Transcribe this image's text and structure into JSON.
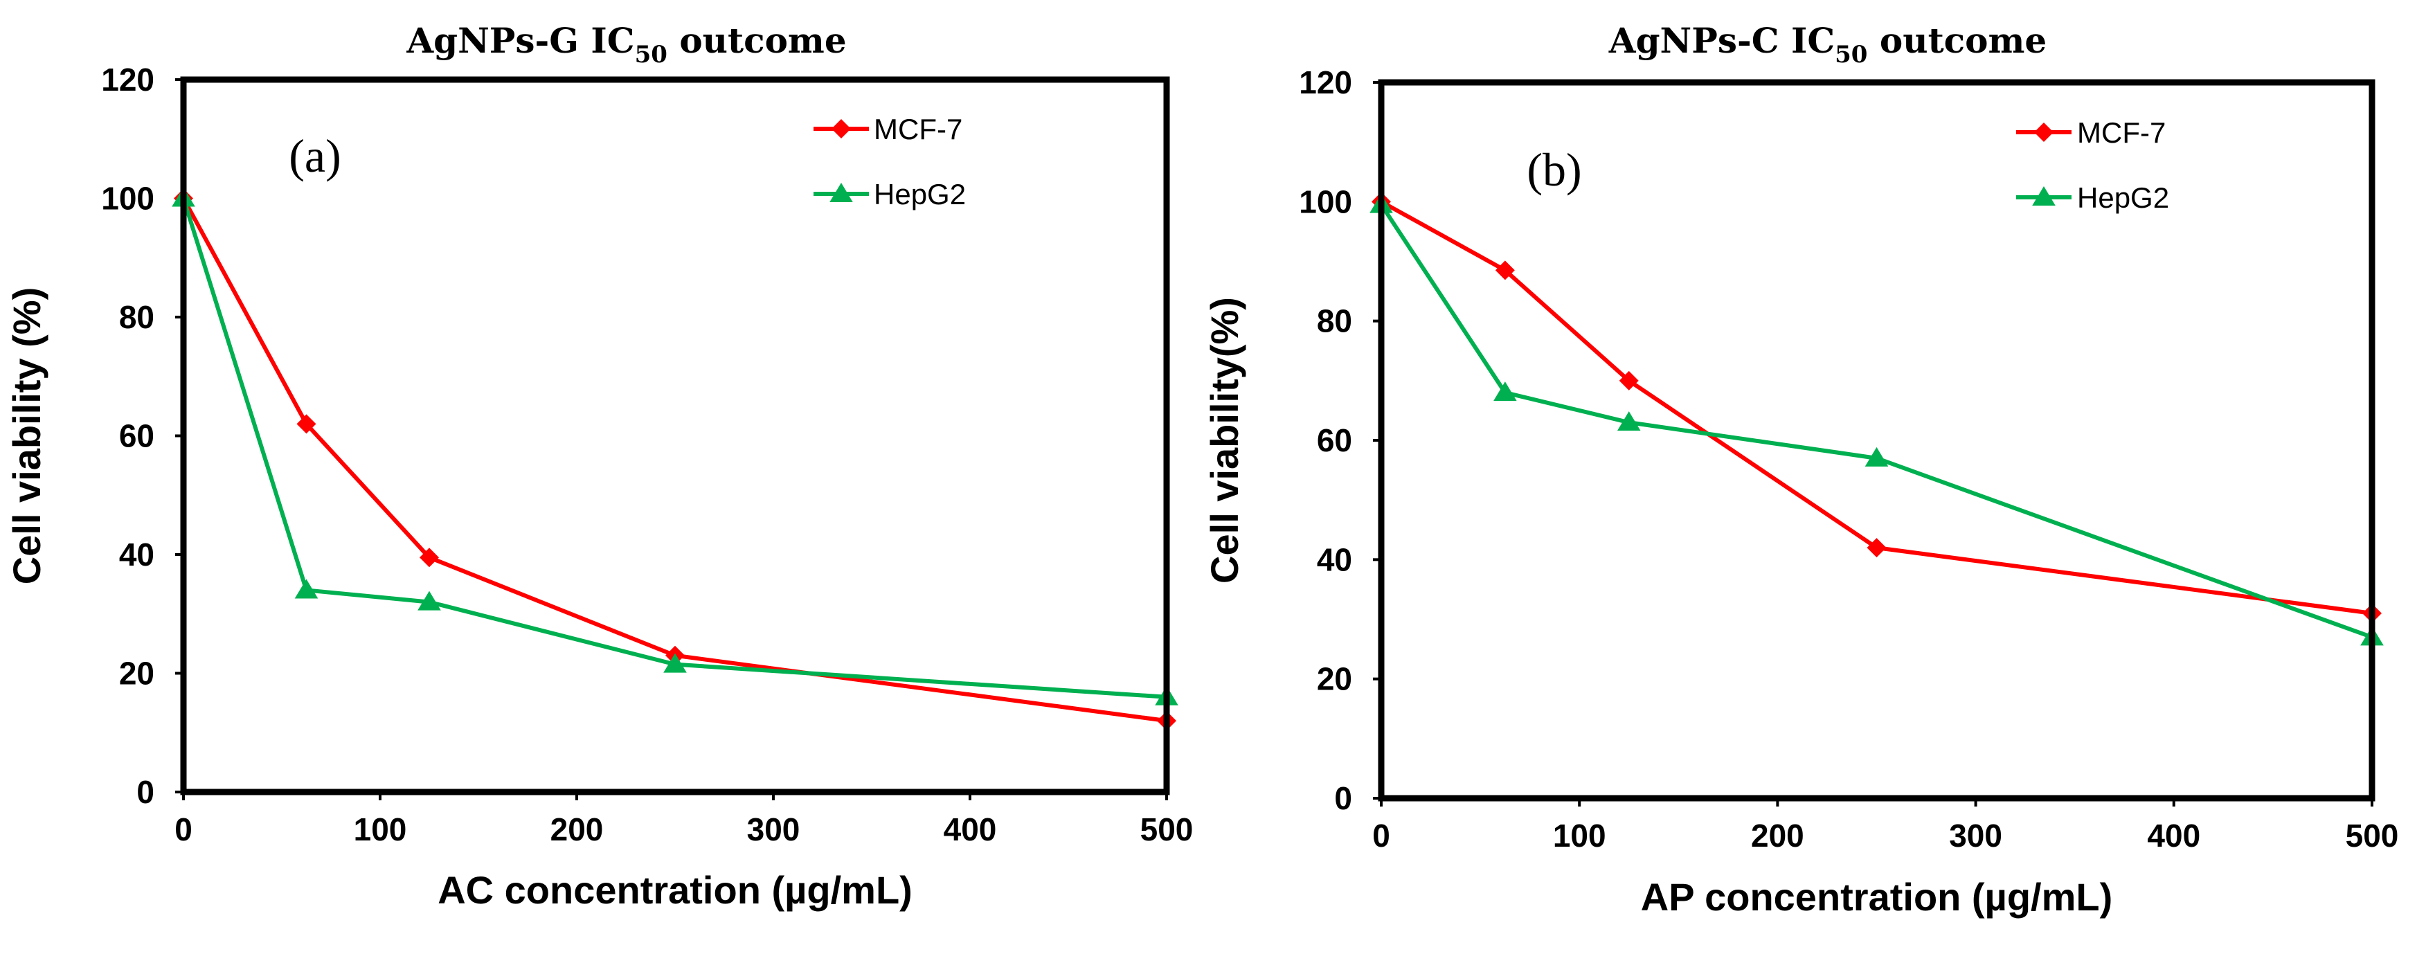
{
  "chart_data": [
    {
      "type": "line",
      "panel": "a",
      "panel_label": "(a)",
      "title": {
        "main": "AgNPs-G IC",
        "sub": "50",
        "suffix": " outcome"
      },
      "xlabel": "AC concentration (µg/mL)",
      "ylabel": "Cell viability (%)",
      "xlim": [
        0,
        500
      ],
      "ylim": [
        0,
        120
      ],
      "xticks": [
        0,
        100,
        200,
        300,
        400,
        500
      ],
      "yticks": [
        0,
        20,
        40,
        60,
        80,
        100,
        120
      ],
      "grid": false,
      "legend_position": "top-right",
      "series": [
        {
          "name": "MCF-7",
          "color": "#ff0000",
          "marker": "diamond",
          "x": [
            0,
            62.5,
            125,
            250,
            500
          ],
          "y": [
            100,
            62,
            39.5,
            23,
            12
          ]
        },
        {
          "name": "HepG2",
          "color": "#00b050",
          "marker": "triangle",
          "x": [
            0,
            62.5,
            125,
            250,
            500
          ],
          "y": [
            100,
            34,
            32,
            21.5,
            16
          ]
        }
      ]
    },
    {
      "type": "line",
      "panel": "b",
      "panel_label": "(b)",
      "title": {
        "main": "AgNPs-C IC",
        "sub": "50",
        "suffix": " outcome"
      },
      "xlabel": "AP concentration (µg/mL)",
      "ylabel": "Cell viability(%)",
      "xlim": [
        0,
        500
      ],
      "ylim": [
        0,
        120
      ],
      "xticks": [
        0,
        100,
        200,
        300,
        400,
        500
      ],
      "yticks": [
        0,
        20,
        40,
        60,
        80,
        100,
        120
      ],
      "grid": false,
      "legend_position": "top-right",
      "series": [
        {
          "name": "MCF-7",
          "color": "#ff0000",
          "marker": "diamond",
          "x": [
            0,
            62.5,
            125,
            250,
            500
          ],
          "y": [
            100,
            88.5,
            70,
            42,
            31
          ]
        },
        {
          "name": "HepG2",
          "color": "#00b050",
          "marker": "triangle",
          "x": [
            0,
            62.5,
            125,
            250,
            500
          ],
          "y": [
            99.5,
            68,
            63,
            57,
            27
          ]
        }
      ]
    }
  ]
}
